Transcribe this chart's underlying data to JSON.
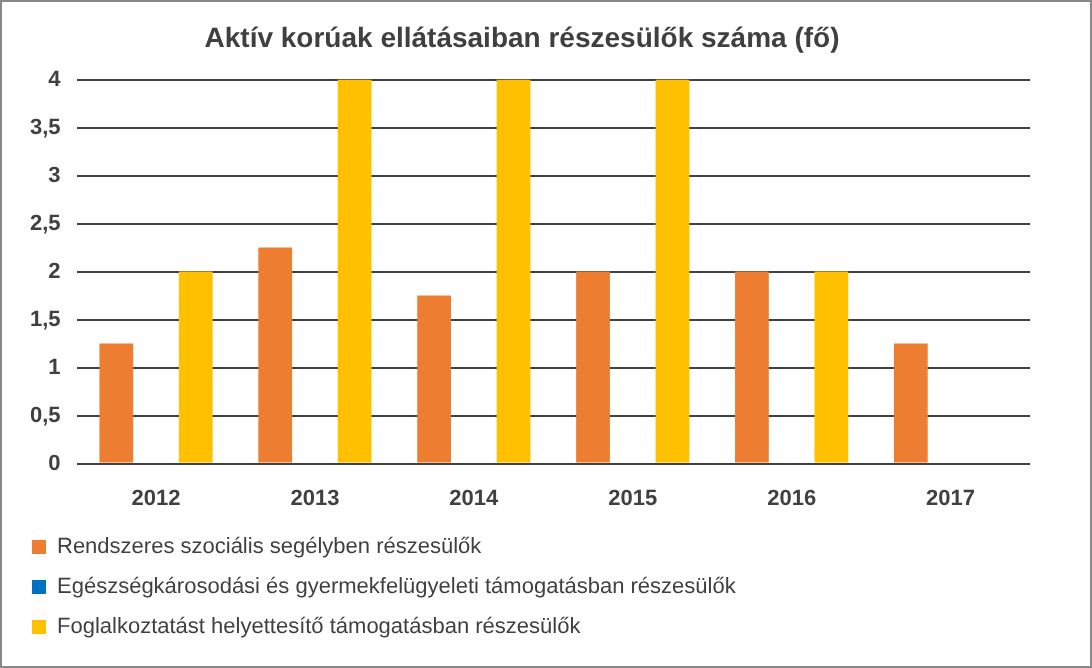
{
  "chart_data": {
    "type": "bar",
    "title": "Aktív korúak ellátásaiban részesülők száma (fő)",
    "categories": [
      "2012",
      "2013",
      "2014",
      "2015",
      "2016",
      "2017"
    ],
    "series": [
      {
        "name": "Rendszeres szociális segélyben részesülők",
        "color": "#ed7d31",
        "values": [
          1.25,
          2.25,
          1.75,
          2,
          2,
          1.25
        ]
      },
      {
        "name": "Egészségkárosodási és gyermekfelügyeleti támogatásban részesülők",
        "color": "#0070c0",
        "values": [
          null,
          null,
          null,
          null,
          null,
          null
        ]
      },
      {
        "name": "Foglalkoztatást helyettesítő támogatásban részesülők",
        "color": "#ffc000",
        "values": [
          2,
          4,
          4,
          4,
          2,
          0
        ]
      }
    ],
    "ylim": [
      0,
      4
    ],
    "yticks": [
      0,
      {
        "value": 0.5,
        "label": "0,5"
      },
      1,
      {
        "value": 1.5,
        "label": "1,5"
      },
      2,
      {
        "value": 2.5,
        "label": "2,5"
      },
      3,
      {
        "value": 3.5,
        "label": "3,5"
      },
      4
    ],
    "grid": "y",
    "legend": "bottom"
  }
}
